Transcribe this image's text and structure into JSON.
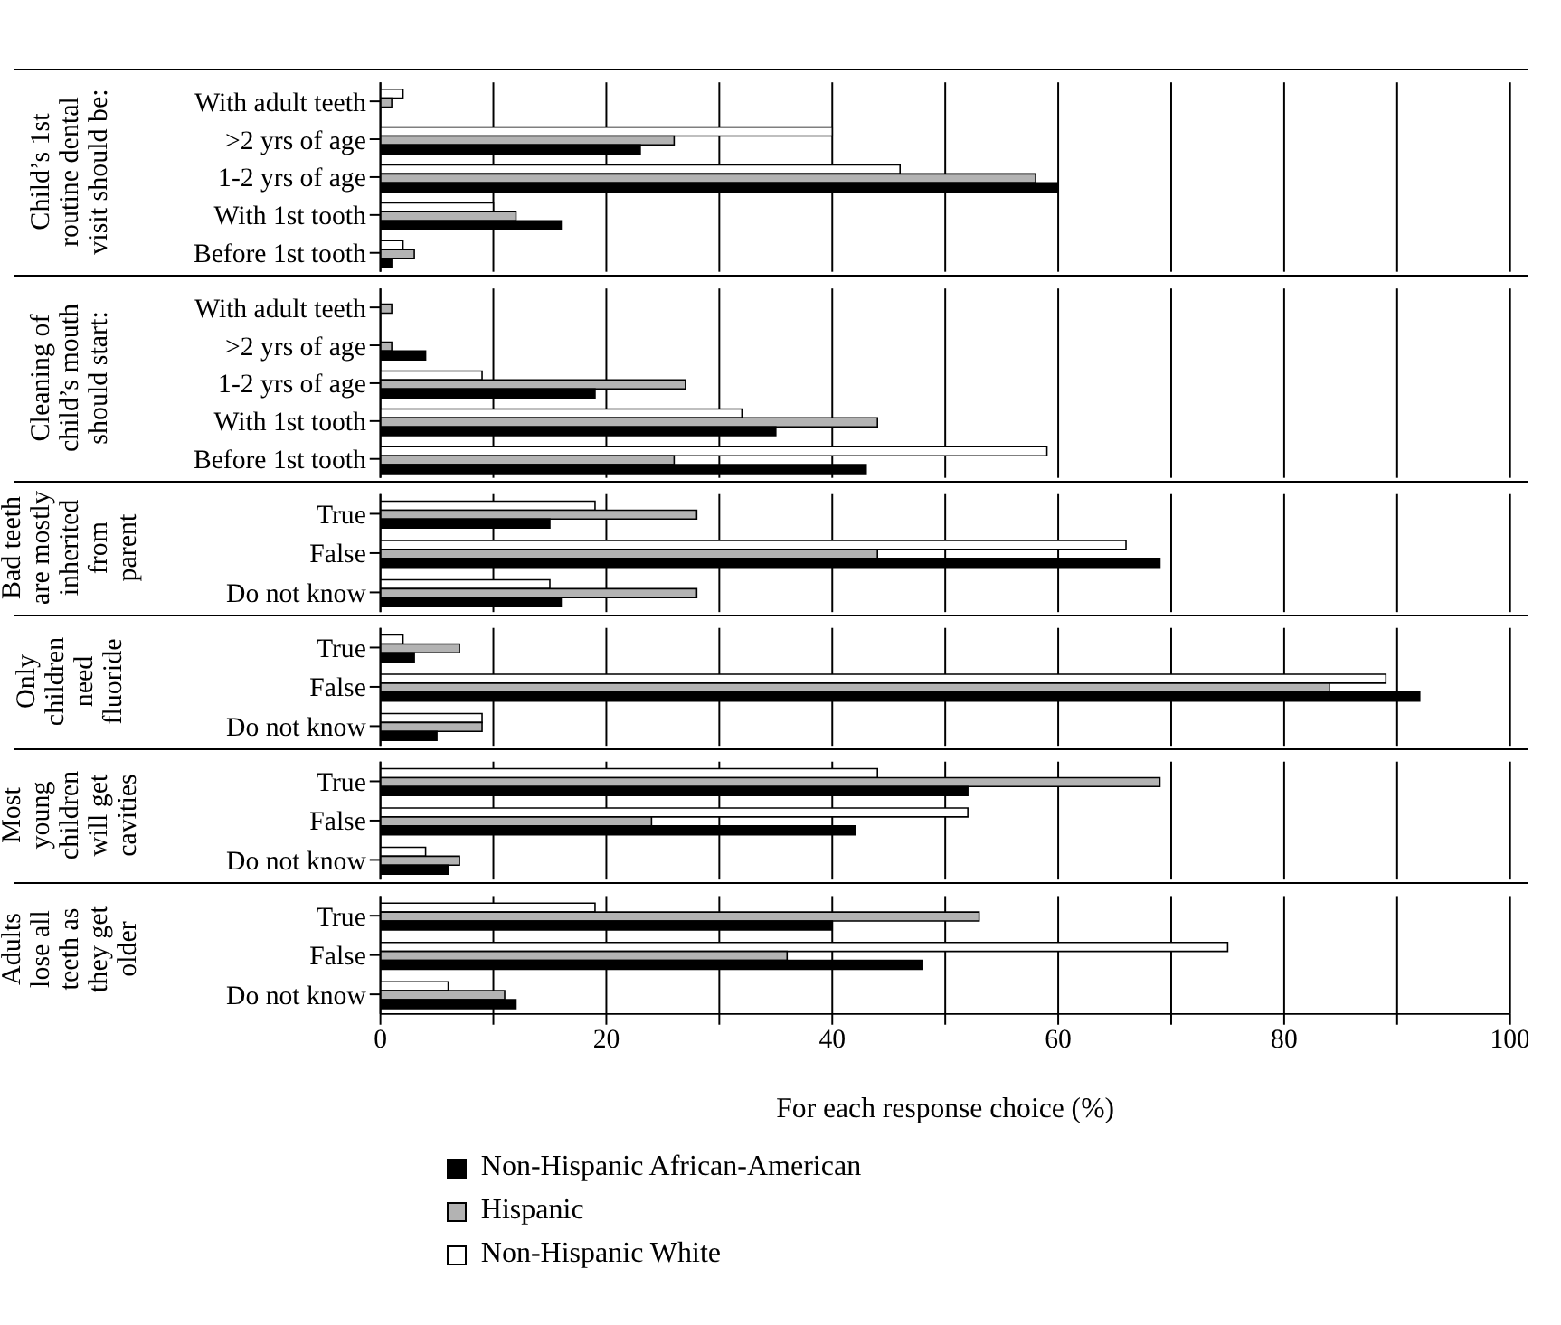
{
  "chart_data": [
    {
      "type": "bar",
      "orientation": "horizontal",
      "title": "Child’s 1st routine dental visit should be:",
      "categories": [
        "With adult teeth",
        ">2 yrs of age",
        "1-2 yrs of age",
        "With 1st tooth",
        "Before 1st tooth"
      ],
      "series": [
        {
          "color": "#ffffff",
          "values": [
            2,
            40,
            46,
            10,
            2
          ]
        },
        {
          "color": "#b3b3b3",
          "values": [
            1,
            26,
            58,
            12,
            3
          ]
        },
        {
          "color": "#000000",
          "values": [
            0,
            23,
            60,
            16,
            1
          ]
        }
      ],
      "xlim": [
        0,
        100
      ],
      "xticks": [
        0,
        {
          "value": 10,
          "label": null
        },
        20,
        {
          "value": 30,
          "label": null
        },
        40,
        {
          "value": 50,
          "label": null
        },
        60,
        {
          "value": 70,
          "label": null
        },
        80,
        {
          "value": 90,
          "label": null
        },
        100
      ],
      "grid": "x",
      "tick_labels": "y"
    },
    {
      "type": "bar",
      "orientation": "horizontal",
      "title": "Cleaning of child’s mouth should start:",
      "categories": [
        "With adult teeth",
        ">2 yrs of age",
        "1-2 yrs of age",
        "With 1st tooth",
        "Before 1st tooth"
      ],
      "series": [
        {
          "color": "#ffffff",
          "values": [
            0,
            0,
            9,
            32,
            59
          ]
        },
        {
          "color": "#b3b3b3",
          "values": [
            1,
            1,
            27,
            44,
            26
          ]
        },
        {
          "color": "#000000",
          "values": [
            0,
            4,
            19,
            35,
            43
          ]
        }
      ],
      "xlim": [
        0,
        100
      ],
      "xticks": [
        0,
        {
          "value": 10,
          "label": null
        },
        20,
        {
          "value": 30,
          "label": null
        },
        40,
        {
          "value": 50,
          "label": null
        },
        60,
        {
          "value": 70,
          "label": null
        },
        80,
        {
          "value": 90,
          "label": null
        },
        100
      ],
      "grid": "x",
      "tick_labels": "y"
    },
    {
      "type": "bar",
      "orientation": "horizontal",
      "title": "Bad teeth are mostly inherited from parent",
      "categories": [
        "True",
        "False",
        "Do not know"
      ],
      "series": [
        {
          "color": "#ffffff",
          "values": [
            19,
            66,
            15
          ]
        },
        {
          "color": "#b3b3b3",
          "values": [
            28,
            44,
            28
          ]
        },
        {
          "color": "#000000",
          "values": [
            15,
            69,
            16
          ]
        }
      ],
      "xlim": [
        0,
        100
      ],
      "xticks": [
        0,
        {
          "value": 10,
          "label": null
        },
        20,
        {
          "value": 30,
          "label": null
        },
        40,
        {
          "value": 50,
          "label": null
        },
        60,
        {
          "value": 70,
          "label": null
        },
        80,
        {
          "value": 90,
          "label": null
        },
        100
      ],
      "grid": "x",
      "tick_labels": "y"
    },
    {
      "type": "bar",
      "orientation": "horizontal",
      "title": "Only children need fluoride",
      "categories": [
        "True",
        "False",
        "Do not know"
      ],
      "series": [
        {
          "color": "#ffffff",
          "values": [
            2,
            89,
            9
          ]
        },
        {
          "color": "#b3b3b3",
          "values": [
            7,
            84,
            9
          ]
        },
        {
          "color": "#000000",
          "values": [
            3,
            92,
            5
          ]
        }
      ],
      "xlim": [
        0,
        100
      ],
      "xticks": [
        0,
        {
          "value": 10,
          "label": null
        },
        20,
        {
          "value": 30,
          "label": null
        },
        40,
        {
          "value": 50,
          "label": null
        },
        60,
        {
          "value": 70,
          "label": null
        },
        80,
        {
          "value": 90,
          "label": null
        },
        100
      ],
      "grid": "x",
      "tick_labels": "y"
    },
    {
      "type": "bar",
      "orientation": "horizontal",
      "title": "Most young children will get cavities",
      "categories": [
        "True",
        "False",
        "Do not know"
      ],
      "series": [
        {
          "color": "#ffffff",
          "values": [
            44,
            52,
            4
          ]
        },
        {
          "color": "#b3b3b3",
          "values": [
            69,
            24,
            7
          ]
        },
        {
          "color": "#000000",
          "values": [
            52,
            42,
            6
          ]
        }
      ],
      "xlim": [
        0,
        100
      ],
      "xticks": [
        0,
        {
          "value": 10,
          "label": null
        },
        20,
        {
          "value": 30,
          "label": null
        },
        40,
        {
          "value": 50,
          "label": null
        },
        60,
        {
          "value": 70,
          "label": null
        },
        80,
        {
          "value": 90,
          "label": null
        },
        100
      ],
      "grid": "x",
      "tick_labels": "y"
    },
    {
      "type": "bar",
      "orientation": "horizontal",
      "title": "Adults lose all teeth as they get older",
      "categories": [
        "True",
        "False",
        "Do not know"
      ],
      "series": [
        {
          "name": "Non-Hispanic White",
          "color": "#ffffff",
          "values": [
            19,
            75,
            6
          ]
        },
        {
          "name": "Hispanic",
          "color": "#b3b3b3",
          "values": [
            53,
            36,
            11
          ]
        },
        {
          "name": "Non-Hispanic African-American",
          "color": "#000000",
          "values": [
            40,
            48,
            12
          ]
        }
      ],
      "xlim": [
        0,
        100
      ],
      "xticks": [
        0,
        {
          "value": 10,
          "label": null
        },
        20,
        {
          "value": 30,
          "label": null
        },
        40,
        {
          "value": 50,
          "label": null
        },
        60,
        {
          "value": 70,
          "label": null
        },
        80,
        {
          "value": 90,
          "label": null
        },
        100
      ],
      "grid": "x",
      "xlabel": "For each response choice (%)",
      "legend": "bottom"
    }
  ]
}
